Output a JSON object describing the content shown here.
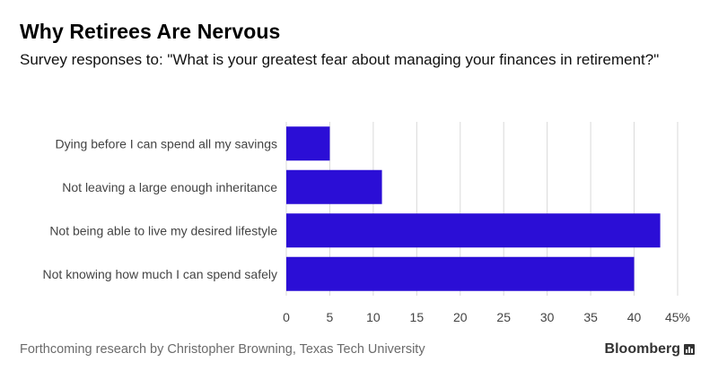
{
  "header": {
    "title": "Why Retirees Are Nervous",
    "subtitle": "Survey responses to: \"What is your greatest fear about managing your finances in retirement?\""
  },
  "footer": {
    "source": "Forthcoming research by Christopher Browning, Texas Tech University",
    "brand": "Bloomberg"
  },
  "colors": {
    "bar": "#2b0ed6",
    "grid": "#d9d9d9",
    "label": "#444444"
  },
  "chart_data": {
    "type": "bar",
    "orientation": "horizontal",
    "categories": [
      "Dying before I can spend all my savings",
      "Not leaving a large enough inheritance",
      "Not being able to live my desired lifestyle",
      "Not knowing how much I can spend safely"
    ],
    "values": [
      5,
      11,
      43,
      40
    ],
    "xlim": [
      0,
      45
    ],
    "ticks": [
      "0",
      "5",
      "10",
      "15",
      "20",
      "25",
      "30",
      "35",
      "40",
      "45%"
    ],
    "grid": true
  }
}
